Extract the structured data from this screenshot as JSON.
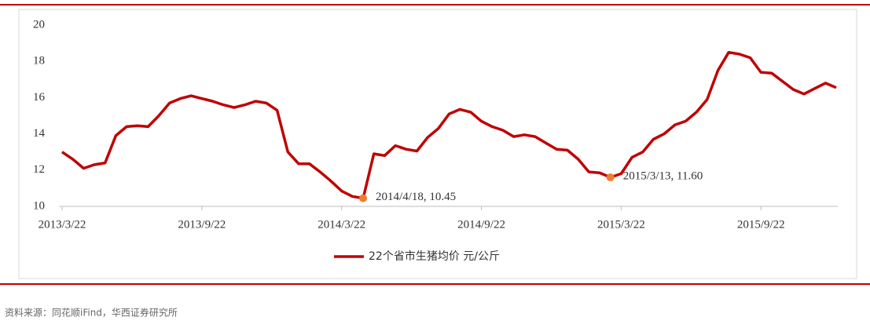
{
  "chart_data": {
    "type": "line",
    "categories": [
      "2013/3/22",
      null,
      null,
      null,
      null,
      null,
      null,
      null,
      null,
      null,
      null,
      null,
      null,
      "2013/9/22",
      null,
      null,
      null,
      null,
      null,
      null,
      null,
      null,
      null,
      null,
      null,
      null,
      "2014/3/22",
      null,
      null,
      null,
      null,
      null,
      null,
      null,
      null,
      null,
      null,
      null,
      null,
      "2014/9/22",
      null,
      null,
      null,
      null,
      null,
      null,
      null,
      null,
      null,
      null,
      null,
      null,
      "2015/3/22",
      null,
      null,
      null,
      null,
      null,
      null,
      null,
      null,
      null,
      null,
      null,
      null,
      "2015/9/22",
      null,
      null,
      null,
      null,
      null,
      null,
      null
    ],
    "series": [
      {
        "name": "22个省市生猪均价 元/公斤",
        "color": "#c00000",
        "values": [
          13.0,
          12.6,
          12.1,
          12.3,
          12.4,
          13.9,
          14.4,
          14.45,
          14.4,
          15.0,
          15.7,
          15.95,
          16.1,
          15.95,
          15.8,
          15.6,
          15.45,
          15.6,
          15.8,
          15.7,
          15.3,
          13.0,
          12.35,
          12.35,
          11.9,
          11.4,
          10.85,
          10.55,
          10.45,
          12.9,
          12.8,
          13.35,
          13.15,
          13.05,
          13.8,
          14.3,
          15.1,
          15.35,
          15.2,
          14.7,
          14.4,
          14.2,
          13.85,
          13.95,
          13.85,
          13.5,
          13.15,
          13.1,
          12.6,
          11.9,
          11.85,
          11.6,
          11.8,
          12.7,
          13.0,
          13.7,
          14.0,
          14.5,
          14.7,
          15.2,
          15.9,
          17.5,
          18.5,
          18.4,
          18.2,
          17.4,
          17.35,
          16.9,
          16.45,
          16.2,
          16.5,
          16.8,
          16.55
        ]
      }
    ],
    "annotations": [
      {
        "text": "2014/4/18, 10.45",
        "value": 10.45,
        "color": "#ed7d31"
      },
      {
        "text": "2015/3/13, 11.60",
        "value": 11.6,
        "color": "#ed7d31"
      }
    ],
    "ylim": [
      10,
      20
    ],
    "yticks": [
      10,
      12,
      14,
      16,
      18,
      20
    ],
    "grid": false
  },
  "source": "资料来源：同花顺iFind，华西证券研究所"
}
